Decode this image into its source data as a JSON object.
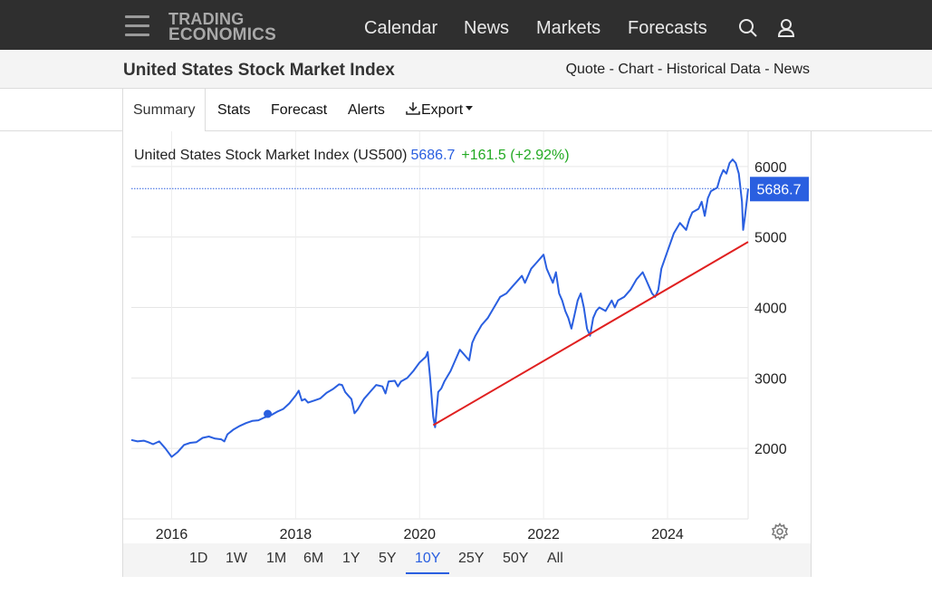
{
  "nav": {
    "logo_line1": "TRADING",
    "logo_line2": "ECONOMICS",
    "links": [
      "Calendar",
      "News",
      "Markets",
      "Forecasts"
    ]
  },
  "header": {
    "title": "United States Stock Market Index",
    "quick_links": [
      "Quote",
      "Chart",
      "Historical Data",
      "News"
    ]
  },
  "tabs": [
    "Summary",
    "Stats",
    "Forecast",
    "Alerts",
    "Export"
  ],
  "active_tab": "Summary",
  "chart_header": {
    "name": "United States Stock Market Index (US500)",
    "value": "5686.7",
    "change": "+161.5 (+2.92%)"
  },
  "ranges": [
    "1D",
    "1W",
    "1M",
    "6M",
    "1Y",
    "5Y",
    "10Y",
    "25Y",
    "50Y",
    "All"
  ],
  "active_range": "10Y",
  "colors": {
    "series": "#2a5fe0",
    "trendline": "#e02020",
    "positive": "#22aa22"
  },
  "chart_data": {
    "type": "line",
    "title": "United States Stock Market Index (US500)",
    "xlabel": "",
    "ylabel": "",
    "xlim": [
      2015.35,
      2025.3
    ],
    "ylim": [
      1000,
      6500
    ],
    "x_ticks": [
      2016,
      2018,
      2020,
      2022,
      2024
    ],
    "y_ticks": [
      2000,
      3000,
      4000,
      5000,
      6000
    ],
    "last_value": 5686.7,
    "last_value_label": "5686.7",
    "grid": true,
    "series": [
      {
        "name": "US500",
        "x": [
          2015.35,
          2015.45,
          2015.55,
          2015.62,
          2015.7,
          2015.8,
          2015.9,
          2016.0,
          2016.1,
          2016.2,
          2016.3,
          2016.4,
          2016.5,
          2016.6,
          2016.7,
          2016.8,
          2016.85,
          2016.9,
          2017.0,
          2017.1,
          2017.2,
          2017.3,
          2017.4,
          2017.5,
          2017.6,
          2017.7,
          2017.8,
          2017.9,
          2018.0,
          2018.05,
          2018.1,
          2018.15,
          2018.2,
          2018.3,
          2018.4,
          2018.5,
          2018.6,
          2018.7,
          2018.75,
          2018.8,
          2018.85,
          2018.9,
          2018.95,
          2019.0,
          2019.1,
          2019.2,
          2019.3,
          2019.4,
          2019.45,
          2019.5,
          2019.6,
          2019.65,
          2019.7,
          2019.8,
          2019.9,
          2020.0,
          2020.1,
          2020.13,
          2020.17,
          2020.22,
          2020.25,
          2020.3,
          2020.35,
          2020.4,
          2020.5,
          2020.6,
          2020.65,
          2020.7,
          2020.75,
          2020.8,
          2020.85,
          2020.9,
          2021.0,
          2021.1,
          2021.2,
          2021.3,
          2021.4,
          2021.5,
          2021.6,
          2021.65,
          2021.7,
          2021.8,
          2021.9,
          2022.0,
          2022.05,
          2022.1,
          2022.15,
          2022.2,
          2022.25,
          2022.3,
          2022.35,
          2022.4,
          2022.45,
          2022.5,
          2022.55,
          2022.6,
          2022.65,
          2022.7,
          2022.75,
          2022.8,
          2022.85,
          2022.9,
          2023.0,
          2023.1,
          2023.15,
          2023.2,
          2023.3,
          2023.4,
          2023.5,
          2023.6,
          2023.65,
          2023.7,
          2023.75,
          2023.8,
          2023.85,
          2023.9,
          2024.0,
          2024.1,
          2024.2,
          2024.3,
          2024.35,
          2024.4,
          2024.5,
          2024.55,
          2024.6,
          2024.65,
          2024.7,
          2024.8,
          2024.85,
          2024.9,
          2024.95,
          2025.0,
          2025.05,
          2025.1,
          2025.15,
          2025.2,
          2025.22,
          2025.25,
          2025.3
        ],
        "values": [
          2120,
          2100,
          2110,
          2090,
          2060,
          2100,
          2000,
          1880,
          1950,
          2050,
          2080,
          2090,
          2150,
          2170,
          2140,
          2130,
          2100,
          2200,
          2270,
          2320,
          2360,
          2390,
          2400,
          2440,
          2470,
          2520,
          2560,
          2640,
          2750,
          2820,
          2680,
          2700,
          2650,
          2680,
          2710,
          2790,
          2840,
          2910,
          2900,
          2800,
          2750,
          2700,
          2500,
          2550,
          2700,
          2800,
          2900,
          2880,
          2780,
          2950,
          2960,
          2880,
          2950,
          3000,
          3100,
          3220,
          3300,
          3370,
          3000,
          2450,
          2300,
          2800,
          2850,
          2950,
          3100,
          3300,
          3400,
          3350,
          3300,
          3250,
          3500,
          3600,
          3750,
          3850,
          4000,
          4150,
          4200,
          4300,
          4400,
          4450,
          4350,
          4550,
          4650,
          4750,
          4550,
          4450,
          4350,
          4500,
          4200,
          4100,
          3950,
          3850,
          3700,
          3900,
          4100,
          4200,
          4000,
          3700,
          3600,
          3850,
          3950,
          4000,
          3950,
          4100,
          4000,
          4100,
          4150,
          4250,
          4400,
          4500,
          4400,
          4300,
          4200,
          4150,
          4250,
          4550,
          4800,
          5050,
          5200,
          5100,
          5250,
          5350,
          5400,
          5500,
          5300,
          5550,
          5650,
          5700,
          5850,
          5950,
          5900,
          6050,
          6100,
          6050,
          5900,
          5500,
          5100,
          5300,
          5686.7
        ]
      },
      {
        "name": "Trend",
        "x": [
          2020.22,
          2025.3
        ],
        "values": [
          2330,
          4930
        ]
      }
    ],
    "markers": [
      {
        "x": 2017.55,
        "value": 2490
      }
    ]
  }
}
